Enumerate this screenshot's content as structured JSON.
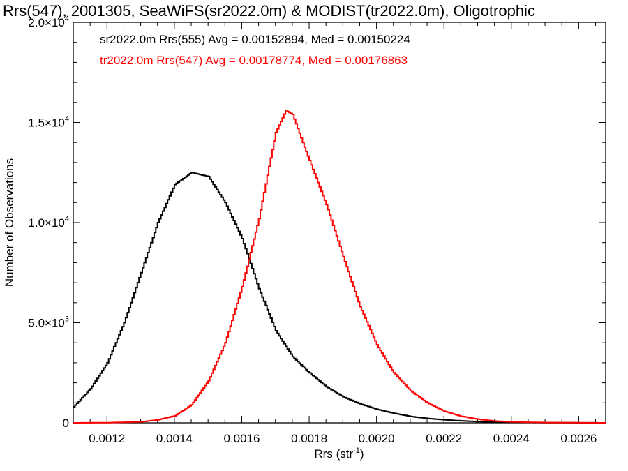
{
  "chart_data": {
    "type": "line",
    "title": "Rrs(547), 2001305, SeaWiFS(sr2022.0m) & MODIST(tr2022.0m), Oligotrophic",
    "xlabel": "Rrs (str",
    "xlabel_sup": "-1",
    "xlabel_end": ")",
    "ylabel": "Number of Observations",
    "xlim": [
      0.0011,
      0.00268
    ],
    "ylim": [
      0,
      20000
    ],
    "x_ticks": [
      {
        "value": 0.0012,
        "label": "0.0012"
      },
      {
        "value": 0.0014,
        "label": "0.0014"
      },
      {
        "value": 0.0016,
        "label": "0.0016"
      },
      {
        "value": 0.0018,
        "label": "0.0018"
      },
      {
        "value": 0.002,
        "label": "0.0020"
      },
      {
        "value": 0.0022,
        "label": "0.0022"
      },
      {
        "value": 0.0024,
        "label": "0.0024"
      },
      {
        "value": 0.0026,
        "label": "0.0026"
      }
    ],
    "y_ticks": [
      {
        "value": 0,
        "mant": "0",
        "exp": ""
      },
      {
        "value": 5000,
        "mant": "5.0×10",
        "exp": "3"
      },
      {
        "value": 10000,
        "mant": "1.0×10",
        "exp": "4"
      },
      {
        "value": 15000,
        "mant": "1.5×10",
        "exp": "4"
      },
      {
        "value": 20000,
        "mant": "2.0×10",
        "exp": "4"
      }
    ],
    "annotations": [
      {
        "text": "sr2022.0m Rrs(555) Avg = 0.00152894, Med = 0.00150224",
        "color": "#000000"
      },
      {
        "text": "tr2022.0m Rrs(547) Avg = 0.00178774, Med = 0.00176863",
        "color": "#ff0000"
      }
    ],
    "series": [
      {
        "color": "#000000",
        "points": [
          [
            0.0011,
            800
          ],
          [
            0.00115,
            1700
          ],
          [
            0.0012,
            3000
          ],
          [
            0.00125,
            5000
          ],
          [
            0.0013,
            7500
          ],
          [
            0.00135,
            10000
          ],
          [
            0.0014,
            11900
          ],
          [
            0.00145,
            12500
          ],
          [
            0.0015,
            12300
          ],
          [
            0.00155,
            11000
          ],
          [
            0.0016,
            9200
          ],
          [
            0.00165,
            6700
          ],
          [
            0.0017,
            4600
          ],
          [
            0.00175,
            3300
          ],
          [
            0.0018,
            2500
          ],
          [
            0.00185,
            1800
          ],
          [
            0.0019,
            1300
          ],
          [
            0.00195,
            950
          ],
          [
            0.002,
            680
          ],
          [
            0.00205,
            480
          ],
          [
            0.0021,
            320
          ],
          [
            0.00215,
            220
          ],
          [
            0.0022,
            150
          ],
          [
            0.00225,
            100
          ],
          [
            0.0023,
            60
          ],
          [
            0.00235,
            40
          ],
          [
            0.0024,
            25
          ],
          [
            0.0025,
            10
          ],
          [
            0.00268,
            0
          ]
        ]
      },
      {
        "color": "#ff0000",
        "points": [
          [
            0.0011,
            0
          ],
          [
            0.0012,
            10
          ],
          [
            0.0013,
            50
          ],
          [
            0.00135,
            150
          ],
          [
            0.0014,
            350
          ],
          [
            0.00145,
            900
          ],
          [
            0.0015,
            2100
          ],
          [
            0.00155,
            4000
          ],
          [
            0.0016,
            6800
          ],
          [
            0.00165,
            10200
          ],
          [
            0.00168,
            12800
          ],
          [
            0.0017,
            14500
          ],
          [
            0.00173,
            15600
          ],
          [
            0.00175,
            15400
          ],
          [
            0.00178,
            14000
          ],
          [
            0.0018,
            13100
          ],
          [
            0.00185,
            10900
          ],
          [
            0.0019,
            8300
          ],
          [
            0.00195,
            5800
          ],
          [
            0.002,
            3900
          ],
          [
            0.00205,
            2500
          ],
          [
            0.0021,
            1600
          ],
          [
            0.00215,
            1000
          ],
          [
            0.0022,
            580
          ],
          [
            0.00225,
            330
          ],
          [
            0.0023,
            180
          ],
          [
            0.00235,
            90
          ],
          [
            0.0024,
            45
          ],
          [
            0.0025,
            15
          ],
          [
            0.0026,
            5
          ],
          [
            0.00268,
            0
          ]
        ]
      }
    ]
  }
}
